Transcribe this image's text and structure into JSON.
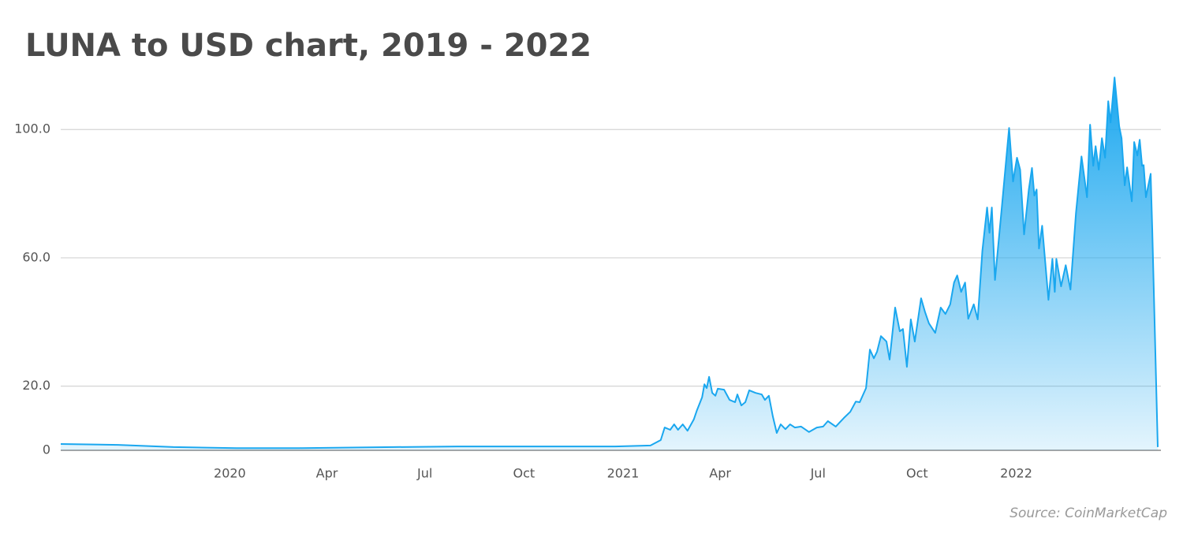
{
  "chart_data": {
    "type": "area",
    "title": "LUNA to USD chart, 2019 - 2022",
    "source": "Source: CoinMarketCap",
    "color": "#1aa7ef",
    "grid": true,
    "xlim": [
      2019.57,
      2022.36
    ],
    "xticks": [
      {
        "value": 2020,
        "label": "2020"
      },
      {
        "value": 2020.247,
        "label": "Apr"
      },
      {
        "value": 2020.496,
        "label": "Jul"
      },
      {
        "value": 2020.748,
        "label": "Oct"
      },
      {
        "value": 2021,
        "label": "2021"
      },
      {
        "value": 2021.247,
        "label": "Apr"
      },
      {
        "value": 2021.496,
        "label": "Jul"
      },
      {
        "value": 2021.748,
        "label": "Oct"
      },
      {
        "value": 2022,
        "label": "2022"
      }
    ],
    "ylim": [
      0,
      118
    ],
    "yticks": [
      0,
      {
        "value": 20,
        "label": "20.0"
      },
      {
        "value": 60,
        "label": "60.0"
      },
      {
        "value": 100,
        "label": "100.0"
      }
    ],
    "x": [
      2019.57,
      2019.716,
      2019.857,
      2020.017,
      2020.178,
      2020.418,
      2020.579,
      2020.819,
      2020.98,
      2021.07,
      2021.096,
      2021.106,
      2021.12,
      2021.13,
      2021.14,
      2021.152,
      2021.164,
      2021.18,
      2021.188,
      2021.201,
      2021.207,
      2021.213,
      2021.219,
      2021.227,
      2021.235,
      2021.241,
      2021.257,
      2021.271,
      2021.285,
      2021.291,
      2021.301,
      2021.311,
      2021.321,
      2021.337,
      2021.353,
      2021.361,
      2021.371,
      2021.381,
      2021.391,
      2021.401,
      2021.413,
      2021.425,
      2021.437,
      2021.453,
      2021.473,
      2021.493,
      2021.509,
      2021.521,
      2021.541,
      2021.562,
      2021.578,
      2021.592,
      2021.602,
      2021.618,
      2021.628,
      2021.638,
      2021.646,
      2021.656,
      2021.67,
      2021.678,
      2021.692,
      2021.704,
      2021.712,
      2021.722,
      2021.732,
      2021.742,
      2021.758,
      2021.768,
      2021.778,
      2021.794,
      2021.808,
      2021.82,
      2021.832,
      2021.842,
      2021.85,
      2021.86,
      2021.87,
      2021.878,
      2021.892,
      2021.902,
      2021.914,
      2021.926,
      2021.932,
      2021.938,
      2021.946,
      2021.962,
      2021.982,
      2021.992,
      2022.002,
      2022.01,
      2022.02,
      2022.032,
      2022.04,
      2022.046,
      2022.052,
      2022.058,
      2022.066,
      2022.082,
      2022.092,
      2022.098,
      2022.102,
      2022.114,
      2022.126,
      2022.138,
      2022.152,
      2022.166,
      2022.18,
      2022.188,
      2022.196,
      2022.202,
      2022.21,
      2022.218,
      2022.226,
      2022.234,
      2022.24,
      2022.25,
      2022.262,
      2022.268,
      2022.276,
      2022.282,
      2022.294,
      2022.3,
      2022.308,
      2022.314,
      2022.32,
      2022.324,
      2022.33,
      2022.342,
      2022.346,
      2022.36
    ],
    "values": [
      1.97,
      1.7,
      1.0,
      0.7,
      0.7,
      1.0,
      1.2,
      1.2,
      1.2,
      1.5,
      3.2,
      7.1,
      6.4,
      8.1,
      6.4,
      8.1,
      6.1,
      9.6,
      12.5,
      16.5,
      20.6,
      19.4,
      22.9,
      17.9,
      17.0,
      19.2,
      18.9,
      15.7,
      15.0,
      17.4,
      14.0,
      15.0,
      18.7,
      17.9,
      17.4,
      15.7,
      17.0,
      10.6,
      5.4,
      8.1,
      6.6,
      8.1,
      7.1,
      7.4,
      5.7,
      7.1,
      7.4,
      9.1,
      7.4,
      10.1,
      12.0,
      15.2,
      15.0,
      19.4,
      31.4,
      28.7,
      30.7,
      35.6,
      33.9,
      28.3,
      44.5,
      37.1,
      37.8,
      26.0,
      40.8,
      33.9,
      47.4,
      43.2,
      39.6,
      36.6,
      44.5,
      42.5,
      45.5,
      52.3,
      54.5,
      49.4,
      52.3,
      41.0,
      45.5,
      40.8,
      62.2,
      75.7,
      67.8,
      75.7,
      53.1,
      74.0,
      100.5,
      83.8,
      91.2,
      87.5,
      67.3,
      81.3,
      88.0,
      79.4,
      81.3,
      62.9,
      70.0,
      46.9,
      59.7,
      49.4,
      59.7,
      51.1,
      57.7,
      50.1,
      74.0,
      91.6,
      78.9,
      101.5,
      88.7,
      94.8,
      87.5,
      97.3,
      91.2,
      108.8,
      102.2,
      116.2,
      101.0,
      97.3,
      82.6,
      88.2,
      77.6,
      96.1,
      91.9,
      96.8,
      88.7,
      88.9,
      78.9,
      86.2,
      69.0,
      1.0
    ]
  }
}
